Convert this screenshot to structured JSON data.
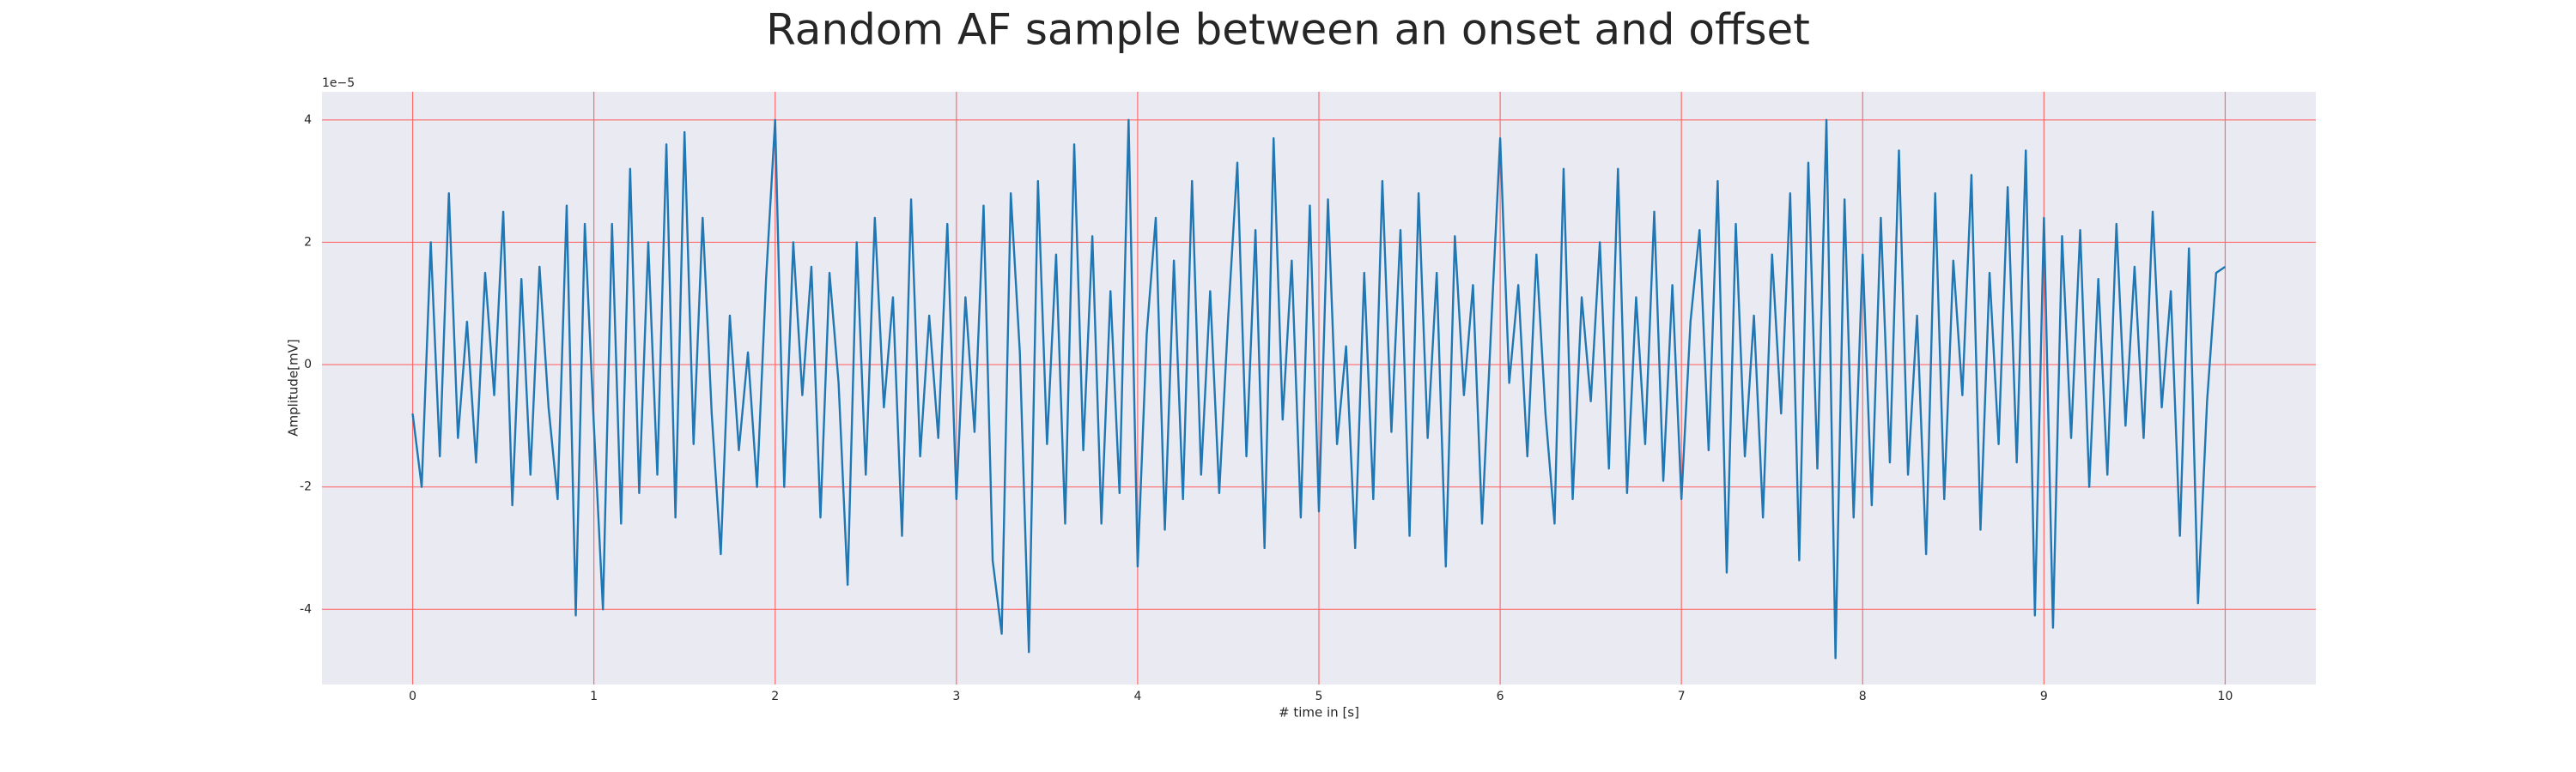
{
  "chart_data": {
    "type": "line",
    "title": "Random AF sample between an onset and offset",
    "x_label": "# time in [s]",
    "y_label": "Amplitude[mV]",
    "y_offset_label": "1e−5",
    "x": [
      0,
      0.05,
      0.1,
      0.15,
      0.2,
      0.25,
      0.3,
      0.35,
      0.4,
      0.45,
      0.5,
      0.55,
      0.6,
      0.65,
      0.7,
      0.75,
      0.8,
      0.85,
      0.9,
      0.95,
      1,
      1.05,
      1.1,
      1.15,
      1.2,
      1.25,
      1.3,
      1.35,
      1.4,
      1.45,
      1.5,
      1.55,
      1.6,
      1.65,
      1.7,
      1.75,
      1.8,
      1.85,
      1.9,
      1.95,
      2,
      2.05,
      2.1,
      2.15,
      2.2,
      2.25,
      2.3,
      2.35,
      2.4,
      2.45,
      2.5,
      2.55,
      2.6,
      2.65,
      2.7,
      2.75,
      2.8,
      2.85,
      2.9,
      2.95,
      3,
      3.05,
      3.1,
      3.15,
      3.2,
      3.25,
      3.3,
      3.35,
      3.4,
      3.45,
      3.5,
      3.55,
      3.6,
      3.65,
      3.7,
      3.75,
      3.8,
      3.85,
      3.9,
      3.95,
      4,
      4.05,
      4.1,
      4.15,
      4.2,
      4.25,
      4.3,
      4.35,
      4.4,
      4.45,
      4.5,
      4.55,
      4.6,
      4.65,
      4.7,
      4.75,
      4.8,
      4.85,
      4.9,
      4.95,
      5,
      5.05,
      5.1,
      5.15,
      5.2,
      5.25,
      5.3,
      5.35,
      5.4,
      5.45,
      5.5,
      5.55,
      5.6,
      5.65,
      5.7,
      5.75,
      5.8,
      5.85,
      5.9,
      5.95,
      6,
      6.05,
      6.1,
      6.15,
      6.2,
      6.25,
      6.3,
      6.35,
      6.4,
      6.45,
      6.5,
      6.55,
      6.6,
      6.65,
      6.7,
      6.75,
      6.8,
      6.85,
      6.9,
      6.95,
      7,
      7.05,
      7.1,
      7.15,
      7.2,
      7.25,
      7.3,
      7.35,
      7.4,
      7.45,
      7.5,
      7.55,
      7.6,
      7.65,
      7.7,
      7.75,
      7.8,
      7.85,
      7.9,
      7.95,
      8,
      8.05,
      8.1,
      8.15,
      8.2,
      8.25,
      8.3,
      8.35,
      8.4,
      8.45,
      8.5,
      8.55,
      8.6,
      8.65,
      8.7,
      8.75,
      8.8,
      8.85,
      8.9,
      8.95,
      9,
      9.05,
      9.1,
      9.15,
      9.2,
      9.25,
      9.3,
      9.35,
      9.4,
      9.45,
      9.5,
      9.55,
      9.6,
      9.65,
      9.7,
      9.75,
      9.8,
      9.85,
      9.9,
      9.95,
      10
    ],
    "series": [
      {
        "color": "#1f77b4",
        "values": [
          -0.8,
          -2.0,
          2.0,
          -1.5,
          2.8,
          -1.2,
          0.7,
          -1.6,
          1.5,
          -0.5,
          2.5,
          -2.3,
          1.4,
          -1.8,
          1.6,
          -0.7,
          -2.2,
          2.6,
          -4.1,
          2.3,
          -1.0,
          -4.0,
          2.3,
          -2.6,
          3.2,
          -2.1,
          2.0,
          -1.8,
          3.6,
          -2.5,
          3.8,
          -1.3,
          2.4,
          -0.8,
          -3.1,
          0.8,
          -1.4,
          0.2,
          -2.0,
          1.4,
          4.0,
          -2.0,
          2.0,
          -0.5,
          1.6,
          -2.5,
          1.5,
          -0.3,
          -3.6,
          2.0,
          -1.8,
          2.4,
          -0.7,
          1.1,
          -2.8,
          2.7,
          -1.5,
          0.8,
          -1.2,
          2.3,
          -2.2,
          1.1,
          -1.1,
          2.6,
          -3.2,
          -4.4,
          2.8,
          0.2,
          -4.7,
          3.0,
          -1.3,
          1.8,
          -2.6,
          3.6,
          -1.4,
          2.1,
          -2.6,
          1.2,
          -2.1,
          4.0,
          -3.3,
          0.5,
          2.4,
          -2.7,
          1.7,
          -2.2,
          3.0,
          -1.8,
          1.2,
          -2.1,
          0.8,
          3.3,
          -1.5,
          2.2,
          -3.0,
          3.7,
          -0.9,
          1.7,
          -2.5,
          2.6,
          -2.4,
          2.7,
          -1.3,
          0.3,
          -3.0,
          1.5,
          -2.2,
          3.0,
          -1.1,
          2.2,
          -2.8,
          2.8,
          -1.2,
          1.5,
          -3.3,
          2.1,
          -0.5,
          1.3,
          -2.6,
          0.6,
          3.7,
          -0.3,
          1.3,
          -1.5,
          1.8,
          -0.8,
          -2.6,
          3.2,
          -2.2,
          1.1,
          -0.6,
          2.0,
          -1.7,
          3.2,
          -2.1,
          1.1,
          -1.3,
          2.5,
          -1.9,
          1.3,
          -2.2,
          0.7,
          2.2,
          -1.4,
          3.0,
          -3.4,
          2.3,
          -1.5,
          0.8,
          -2.5,
          1.8,
          -0.8,
          2.8,
          -3.2,
          3.3,
          -1.7,
          4.0,
          -4.8,
          2.7,
          -2.5,
          1.8,
          -2.3,
          2.4,
          -1.6,
          3.5,
          -1.8,
          0.8,
          -3.1,
          2.8,
          -2.2,
          1.7,
          -0.5,
          3.1,
          -2.7,
          1.5,
          -1.3,
          2.9,
          -1.6,
          3.5,
          -4.1,
          2.4,
          -4.3,
          2.1,
          -1.2,
          2.2,
          -2.0,
          1.4,
          -1.8,
          2.3,
          -1.0,
          1.6,
          -1.2,
          2.5,
          -0.7,
          1.2,
          -2.8,
          1.9,
          -3.9,
          -0.6,
          1.5,
          1.6
        ]
      }
    ],
    "xlim": [
      -0.5,
      10.5
    ],
    "xticks": [
      0,
      1,
      2,
      3,
      4,
      5,
      6,
      7,
      8,
      9,
      10
    ],
    "ylim": [
      -5.23,
      4.46
    ],
    "yticks": [
      -4,
      -2,
      0,
      2,
      4
    ],
    "grid": true,
    "grid_color": "#ff6b6b",
    "background": "#eaeaf2"
  }
}
